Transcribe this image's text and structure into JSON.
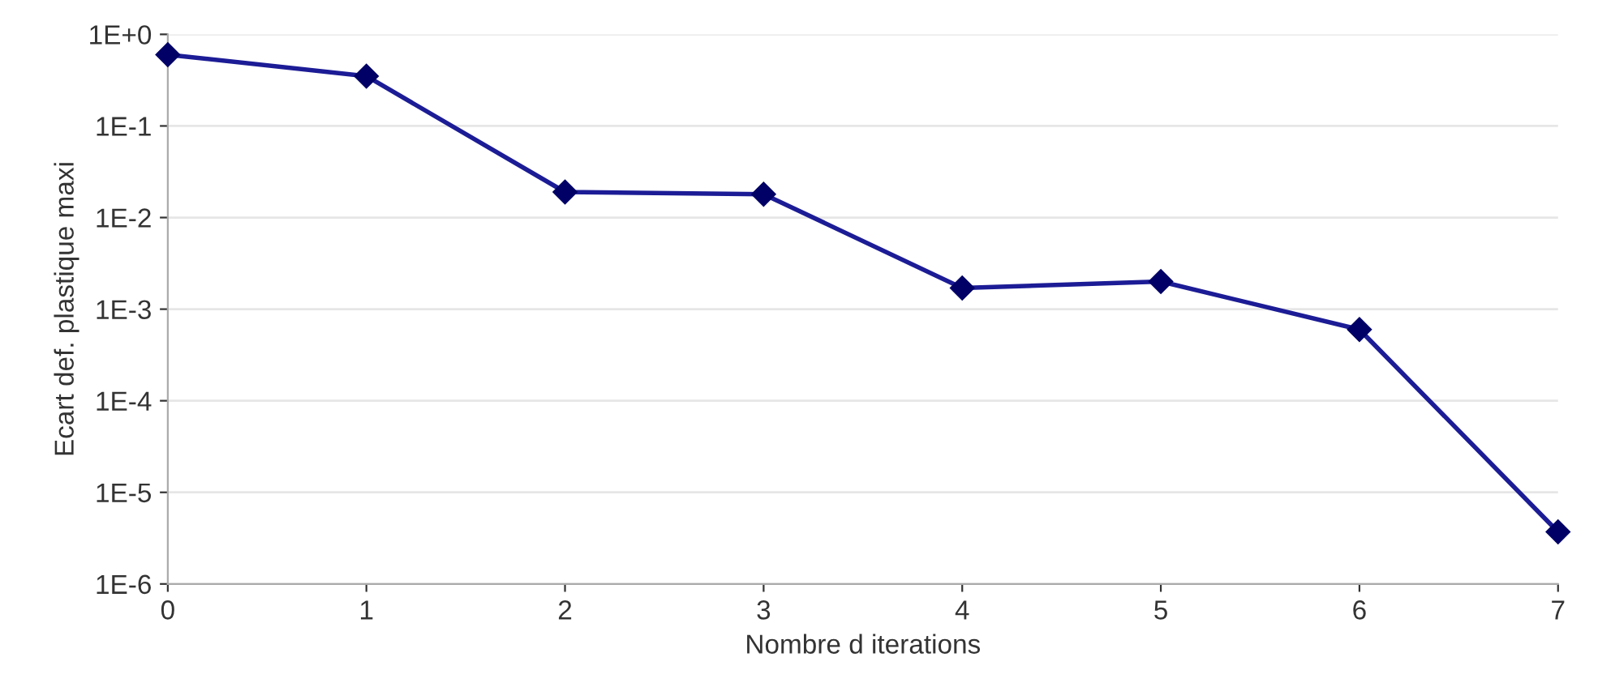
{
  "chart_data": {
    "type": "line",
    "xlabel": "Nombre d iterations",
    "ylabel": "Ecart def. plastique maxi",
    "x": [
      0,
      1,
      2,
      3,
      4,
      5,
      6,
      7
    ],
    "series": [
      {
        "color": "#1c1c96",
        "values": [
          0.6,
          0.35,
          0.019,
          0.018,
          0.0017,
          0.002,
          0.0006,
          3.7e-06
        ]
      }
    ],
    "log": "y",
    "xlim": [
      0,
      7
    ],
    "ylim": [
      1e-06,
      1
    ],
    "xticks": [
      0,
      1,
      2,
      3,
      4,
      5,
      6,
      7
    ],
    "yticks": [
      {
        "value": 1e-06,
        "label": "1E-6"
      },
      {
        "value": 1e-05,
        "label": "1E-5"
      },
      {
        "value": 0.0001,
        "label": "1E-4"
      },
      {
        "value": 0.001,
        "label": "1E-3"
      },
      {
        "value": 0.01,
        "label": "1E-2"
      },
      {
        "value": 0.1,
        "label": "1E-1"
      },
      {
        "value": 1,
        "label": "1E+0"
      }
    ],
    "grid": "y",
    "marker": "diamond",
    "line_style": "solid",
    "legend": false
  }
}
